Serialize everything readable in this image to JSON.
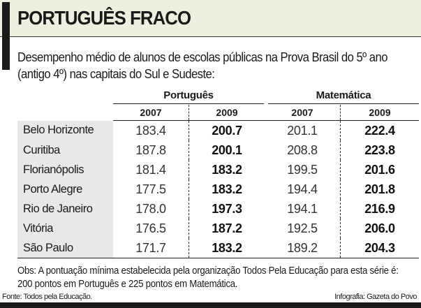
{
  "title": "PORTUGUÊS FRACO",
  "subtitle": "Desempenho médio de alunos de escolas públicas na Prova Brasil do 5º ano (antigo 4º) nas capitais do Sul e Sudeste:",
  "chart_data": {
    "type": "table",
    "groups": [
      "Português",
      "Matemática"
    ],
    "years": [
      "2007",
      "2009",
      "2007",
      "2009"
    ],
    "rows": [
      {
        "city": "Belo Horizonte",
        "values": [
          "183.4",
          "200.7",
          "201.1",
          "222.4"
        ]
      },
      {
        "city": "Curitiba",
        "values": [
          "187.8",
          "200.1",
          "208.8",
          "223.8"
        ]
      },
      {
        "city": "Florianópolis",
        "values": [
          "181.4",
          "183.2",
          "199.5",
          "201.6"
        ]
      },
      {
        "city": "Porto Alegre",
        "values": [
          "177.5",
          "183.2",
          "194.4",
          "201.8"
        ]
      },
      {
        "city": "Rio de Janeiro",
        "values": [
          "178.0",
          "197.3",
          "194.1",
          "216.9"
        ]
      },
      {
        "city": "Vitória",
        "values": [
          "176.5",
          "187.2",
          "192.5",
          "206.0"
        ]
      },
      {
        "city": "São Paulo",
        "values": [
          "171.7",
          "183.2",
          "189.2",
          "204.3"
        ]
      }
    ]
  },
  "note": "Obs: A pontuação mínima estabelecida pela organização Todos Pela Educação para esta série é: 200 pontos em Português e 225 pontos em Matemática.",
  "source": "Fonte: Todos pela Educação.",
  "credit": "Infografia: Gazeta do Povo",
  "colors": {
    "title_band": "#efefdf",
    "city_column": "#e7e8ea"
  }
}
